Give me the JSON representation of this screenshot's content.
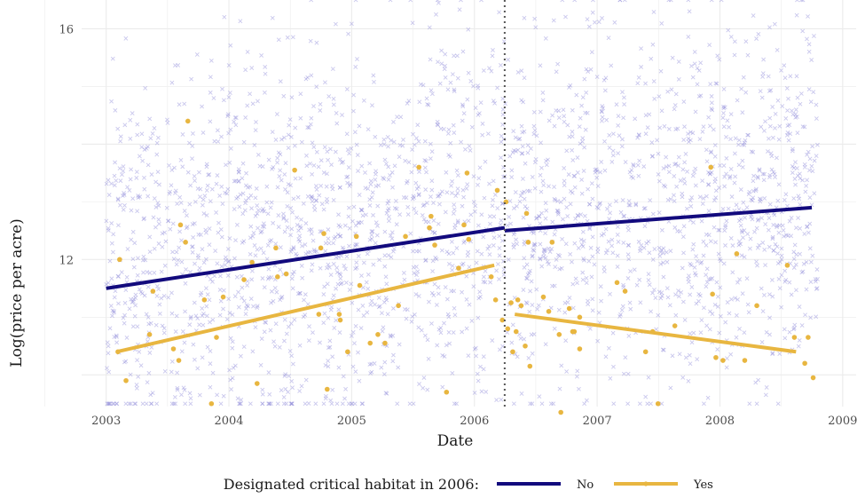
{
  "chart_data": {
    "type": "scatter",
    "xlabel": "Date",
    "ylabel": "Log(price per acre)",
    "x_ticks": [
      "2003",
      "2004",
      "2005",
      "2006",
      "2007",
      "2008",
      "2009"
    ],
    "y_ticks": [
      "12",
      "16"
    ],
    "xlim": [
      "2002-10-20",
      "2009-02-10"
    ],
    "ylim": [
      9.45,
      16.5
    ],
    "grid": true,
    "cutoff_date": "2006-04-01",
    "legend": {
      "title": "Designated critical habitat in 2006:",
      "position": "bottom",
      "entries": [
        "No",
        "Yes"
      ]
    },
    "colors": {
      "no": "#120a7d",
      "yes": "#e8b640",
      "no_points": "#8a84d6",
      "grid": "#ebebeb",
      "cutoff": "#555555"
    },
    "series": [
      {
        "name": "No",
        "point_count_approx": 2600,
        "point_y_range": [
          9.5,
          16.5
        ],
        "fit_lines": [
          {
            "x": [
              "2003-01-01",
              "2006-04-01"
            ],
            "y": [
              11.5,
              12.55
            ]
          },
          {
            "x": [
              "2006-04-01",
              "2008-10-01"
            ],
            "y": [
              12.5,
              12.9
            ]
          }
        ]
      },
      {
        "name": "Yes",
        "fit_lines": [
          {
            "x": [
              "2003-02-01",
              "2006-03-01"
            ],
            "y": [
              10.4,
              11.9
            ]
          },
          {
            "x": [
              "2006-05-01",
              "2008-08-15"
            ],
            "y": [
              11.05,
              10.4
            ]
          }
        ],
        "points": [
          [
            "2003-02-05",
            10.4
          ],
          [
            "2003-02-10",
            12.0
          ],
          [
            "2003-03-01",
            9.9
          ],
          [
            "2003-05-10",
            10.7
          ],
          [
            "2003-05-20",
            11.45
          ],
          [
            "2003-07-20",
            10.45
          ],
          [
            "2003-08-05",
            10.25
          ],
          [
            "2003-08-10",
            12.6
          ],
          [
            "2003-08-25",
            12.3
          ],
          [
            "2003-09-01",
            14.4
          ],
          [
            "2003-10-20",
            11.3
          ],
          [
            "2003-11-10",
            9.5
          ],
          [
            "2003-11-25",
            10.65
          ],
          [
            "2003-12-15",
            11.35
          ],
          [
            "2004-02-15",
            11.65
          ],
          [
            "2004-03-10",
            11.95
          ],
          [
            "2004-03-25",
            9.85
          ],
          [
            "2004-05-20",
            12.2
          ],
          [
            "2004-06-20",
            11.75
          ],
          [
            "2004-05-25",
            11.7
          ],
          [
            "2004-07-15",
            13.55
          ],
          [
            "2004-09-25",
            11.05
          ],
          [
            "2004-10-01",
            12.2
          ],
          [
            "2004-10-10",
            12.45
          ],
          [
            "2004-10-20",
            9.75
          ],
          [
            "2004-11-25",
            11.05
          ],
          [
            "2004-11-28",
            10.95
          ],
          [
            "2004-12-20",
            10.4
          ],
          [
            "2005-01-15",
            12.4
          ],
          [
            "2005-01-25",
            11.55
          ],
          [
            "2005-02-25",
            10.55
          ],
          [
            "2005-03-20",
            10.7
          ],
          [
            "2005-04-10",
            10.55
          ],
          [
            "2005-05-20",
            11.2
          ],
          [
            "2005-06-10",
            12.4
          ],
          [
            "2005-07-20",
            13.6
          ],
          [
            "2005-08-20",
            12.55
          ],
          [
            "2005-08-25",
            12.75
          ],
          [
            "2005-09-05",
            12.25
          ],
          [
            "2005-10-10",
            9.7
          ],
          [
            "2005-11-15",
            11.85
          ],
          [
            "2005-12-01",
            12.6
          ],
          [
            "2005-12-10",
            13.5
          ],
          [
            "2005-12-15",
            12.35
          ],
          [
            "2006-02-20",
            11.7
          ],
          [
            "2006-03-05",
            11.3
          ],
          [
            "2006-03-10",
            13.2
          ],
          [
            "2006-04-05",
            13.0
          ],
          [
            "2006-04-20",
            11.25
          ],
          [
            "2006-05-05",
            10.75
          ],
          [
            "2006-05-10",
            11.3
          ],
          [
            "2006-06-05",
            12.8
          ],
          [
            "2006-06-10",
            12.3
          ],
          [
            "2006-03-25",
            10.95
          ],
          [
            "2006-04-10",
            10.8
          ],
          [
            "2006-04-25",
            10.4
          ],
          [
            "2006-05-20",
            11.2
          ],
          [
            "2006-06-01",
            10.5
          ],
          [
            "2006-06-15",
            10.15
          ],
          [
            "2006-07-25",
            11.35
          ],
          [
            "2006-08-10",
            11.1
          ],
          [
            "2006-08-20",
            12.3
          ],
          [
            "2006-09-10",
            10.7
          ],
          [
            "2006-09-15",
            9.35
          ],
          [
            "2006-10-10",
            11.15
          ],
          [
            "2006-10-20",
            10.75
          ],
          [
            "2006-10-25",
            10.75
          ],
          [
            "2006-11-10",
            11.0
          ],
          [
            "2006-11-10",
            10.45
          ],
          [
            "2007-03-01",
            11.6
          ],
          [
            "2007-03-25",
            11.45
          ],
          [
            "2007-05-25",
            10.4
          ],
          [
            "2007-06-15",
            10.75
          ],
          [
            "2007-07-01",
            9.5
          ],
          [
            "2007-08-20",
            10.85
          ],
          [
            "2007-12-05",
            13.6
          ],
          [
            "2007-12-10",
            11.4
          ],
          [
            "2008-01-10",
            10.25
          ],
          [
            "2008-02-20",
            12.1
          ],
          [
            "2008-03-15",
            10.25
          ],
          [
            "2008-04-20",
            11.2
          ],
          [
            "2008-07-20",
            11.9
          ],
          [
            "2008-08-10",
            10.65
          ],
          [
            "2008-09-10",
            10.2
          ],
          [
            "2008-09-20",
            10.65
          ],
          [
            "2008-10-05",
            9.95
          ],
          [
            "2007-12-20",
            10.3
          ]
        ]
      }
    ]
  }
}
